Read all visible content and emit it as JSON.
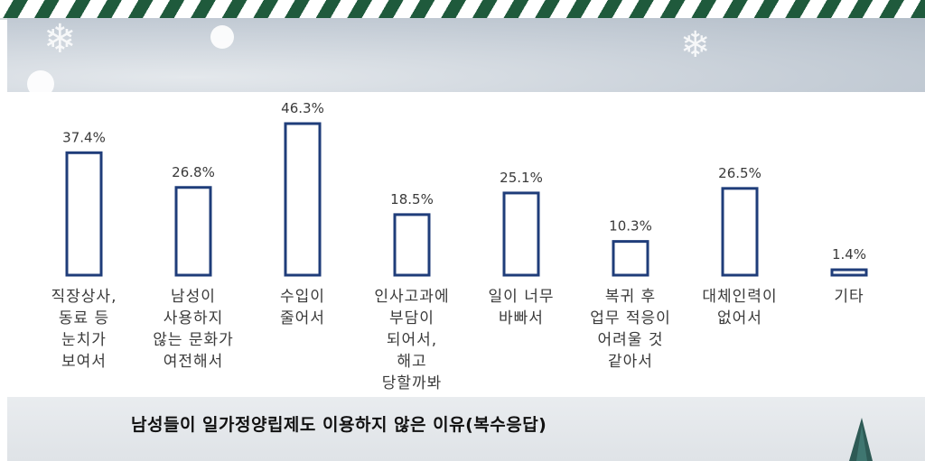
{
  "chart_data": {
    "type": "bar",
    "title": "남성들이 일가정양립제도 이용하지 않은 이유(복수응답)",
    "categories": [
      "직장상사,\n동료 등\n눈치가\n보여서",
      "남성이\n사용하지\n않는 문화가\n여전해서",
      "수입이\n줄어서",
      "인사고과에\n부담이\n되어서,\n해고\n당할까봐",
      "일이 너무\n바빠서",
      "복귀 후\n업무 적응이\n어려울 것\n같아서",
      "대체인력이\n없어서",
      "기타"
    ],
    "values": [
      37.4,
      26.8,
      46.3,
      18.5,
      25.1,
      10.3,
      26.5,
      1.4
    ],
    "value_labels": [
      "37.4%",
      "26.8%",
      "46.3%",
      "18.5%",
      "25.1%",
      "10.3%",
      "26.5%",
      "1.4%"
    ],
    "ylim": [
      0,
      46.3
    ],
    "grid": false,
    "legend": "none",
    "colors": {
      "bar_fill": "#ffffff",
      "bar_stroke": "#1f3d7a",
      "label": "#3a3a3a"
    }
  }
}
